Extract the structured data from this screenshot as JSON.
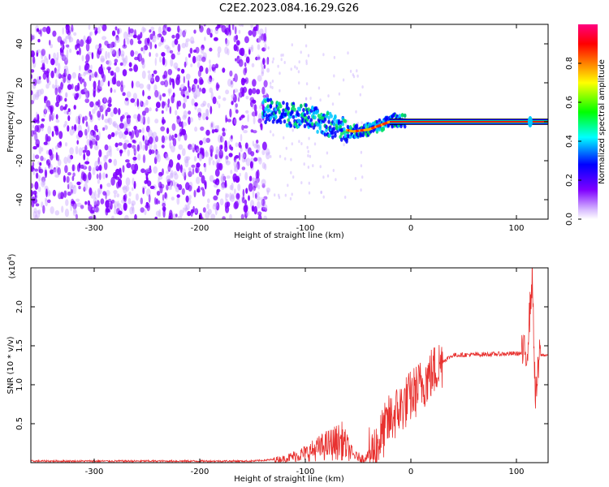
{
  "title": "C2E2.2023.084.16.29.G26",
  "chart_data": [
    {
      "type": "heatmap",
      "xlabel": "Height of straight line (km)",
      "ylabel": "Frequency (Hz)",
      "xlim": [
        -360,
        130
      ],
      "ylim": [
        -50,
        50
      ],
      "xticks": [
        -300,
        -200,
        -100,
        0,
        100
      ],
      "yticks": [
        -40,
        -20,
        0,
        20,
        40
      ],
      "colorbar": {
        "label": "Normalized spectral amplitude",
        "range": [
          0,
          1
        ],
        "ticks": [
          "0.0",
          "0.2",
          "0.4",
          "0.6",
          "0.8"
        ],
        "colormap": [
          "#ffffff",
          "#7f00ff",
          "#0000ff",
          "#00ffff",
          "#00ff00",
          "#ffff00",
          "#ff8000",
          "#ff0000",
          "#ff0080"
        ]
      },
      "features": {
        "noise_region_x": [
          -360,
          -135
        ],
        "noise_color": "#7f00ff",
        "trace_points": [
          {
            "x": -140,
            "f": 6
          },
          {
            "x": -120,
            "f": 4
          },
          {
            "x": -100,
            "f": 3
          },
          {
            "x": -85,
            "f": 0
          },
          {
            "x": -70,
            "f": -3
          },
          {
            "x": -55,
            "f": -5
          },
          {
            "x": -40,
            "f": -4
          },
          {
            "x": -25,
            "f": -1
          },
          {
            "x": -15,
            "f": 1
          },
          {
            "x": 0,
            "f": 0
          },
          {
            "x": 130,
            "f": 0
          }
        ],
        "carrier_line_x": [
          -20,
          130
        ],
        "carrier_frequency": 0
      }
    },
    {
      "type": "line",
      "xlabel": "Height of straight line (km)",
      "ylabel": "SNR (10 * v/v)",
      "multiplier_label": "(x10",
      "multiplier_exponent": "4",
      "xlim": [
        -360,
        130
      ],
      "ylim": [
        0,
        2.5
      ],
      "xticks": [
        -300,
        -200,
        -100,
        0,
        100
      ],
      "yticks": [
        0.5,
        1.0,
        1.5,
        2.0
      ],
      "color": "#e8312f",
      "profile": [
        {
          "x": -360,
          "y": 0.02
        },
        {
          "x": -150,
          "y": 0.02
        },
        {
          "x": -120,
          "y": 0.05
        },
        {
          "x": -100,
          "y": 0.12
        },
        {
          "x": -80,
          "y": 0.22
        },
        {
          "x": -65,
          "y": 0.28
        },
        {
          "x": -55,
          "y": 0.1
        },
        {
          "x": -45,
          "y": 0.05
        },
        {
          "x": -35,
          "y": 0.15
        },
        {
          "x": -20,
          "y": 0.55
        },
        {
          "x": 0,
          "y": 0.85
        },
        {
          "x": 20,
          "y": 1.15
        },
        {
          "x": 30,
          "y": 1.3
        },
        {
          "x": 40,
          "y": 1.38
        },
        {
          "x": 100,
          "y": 1.4
        },
        {
          "x": 110,
          "y": 1.4
        },
        {
          "x": 115,
          "y": 2.4
        },
        {
          "x": 118,
          "y": 0.8
        },
        {
          "x": 122,
          "y": 1.38
        },
        {
          "x": 130,
          "y": 1.38
        }
      ]
    }
  ]
}
